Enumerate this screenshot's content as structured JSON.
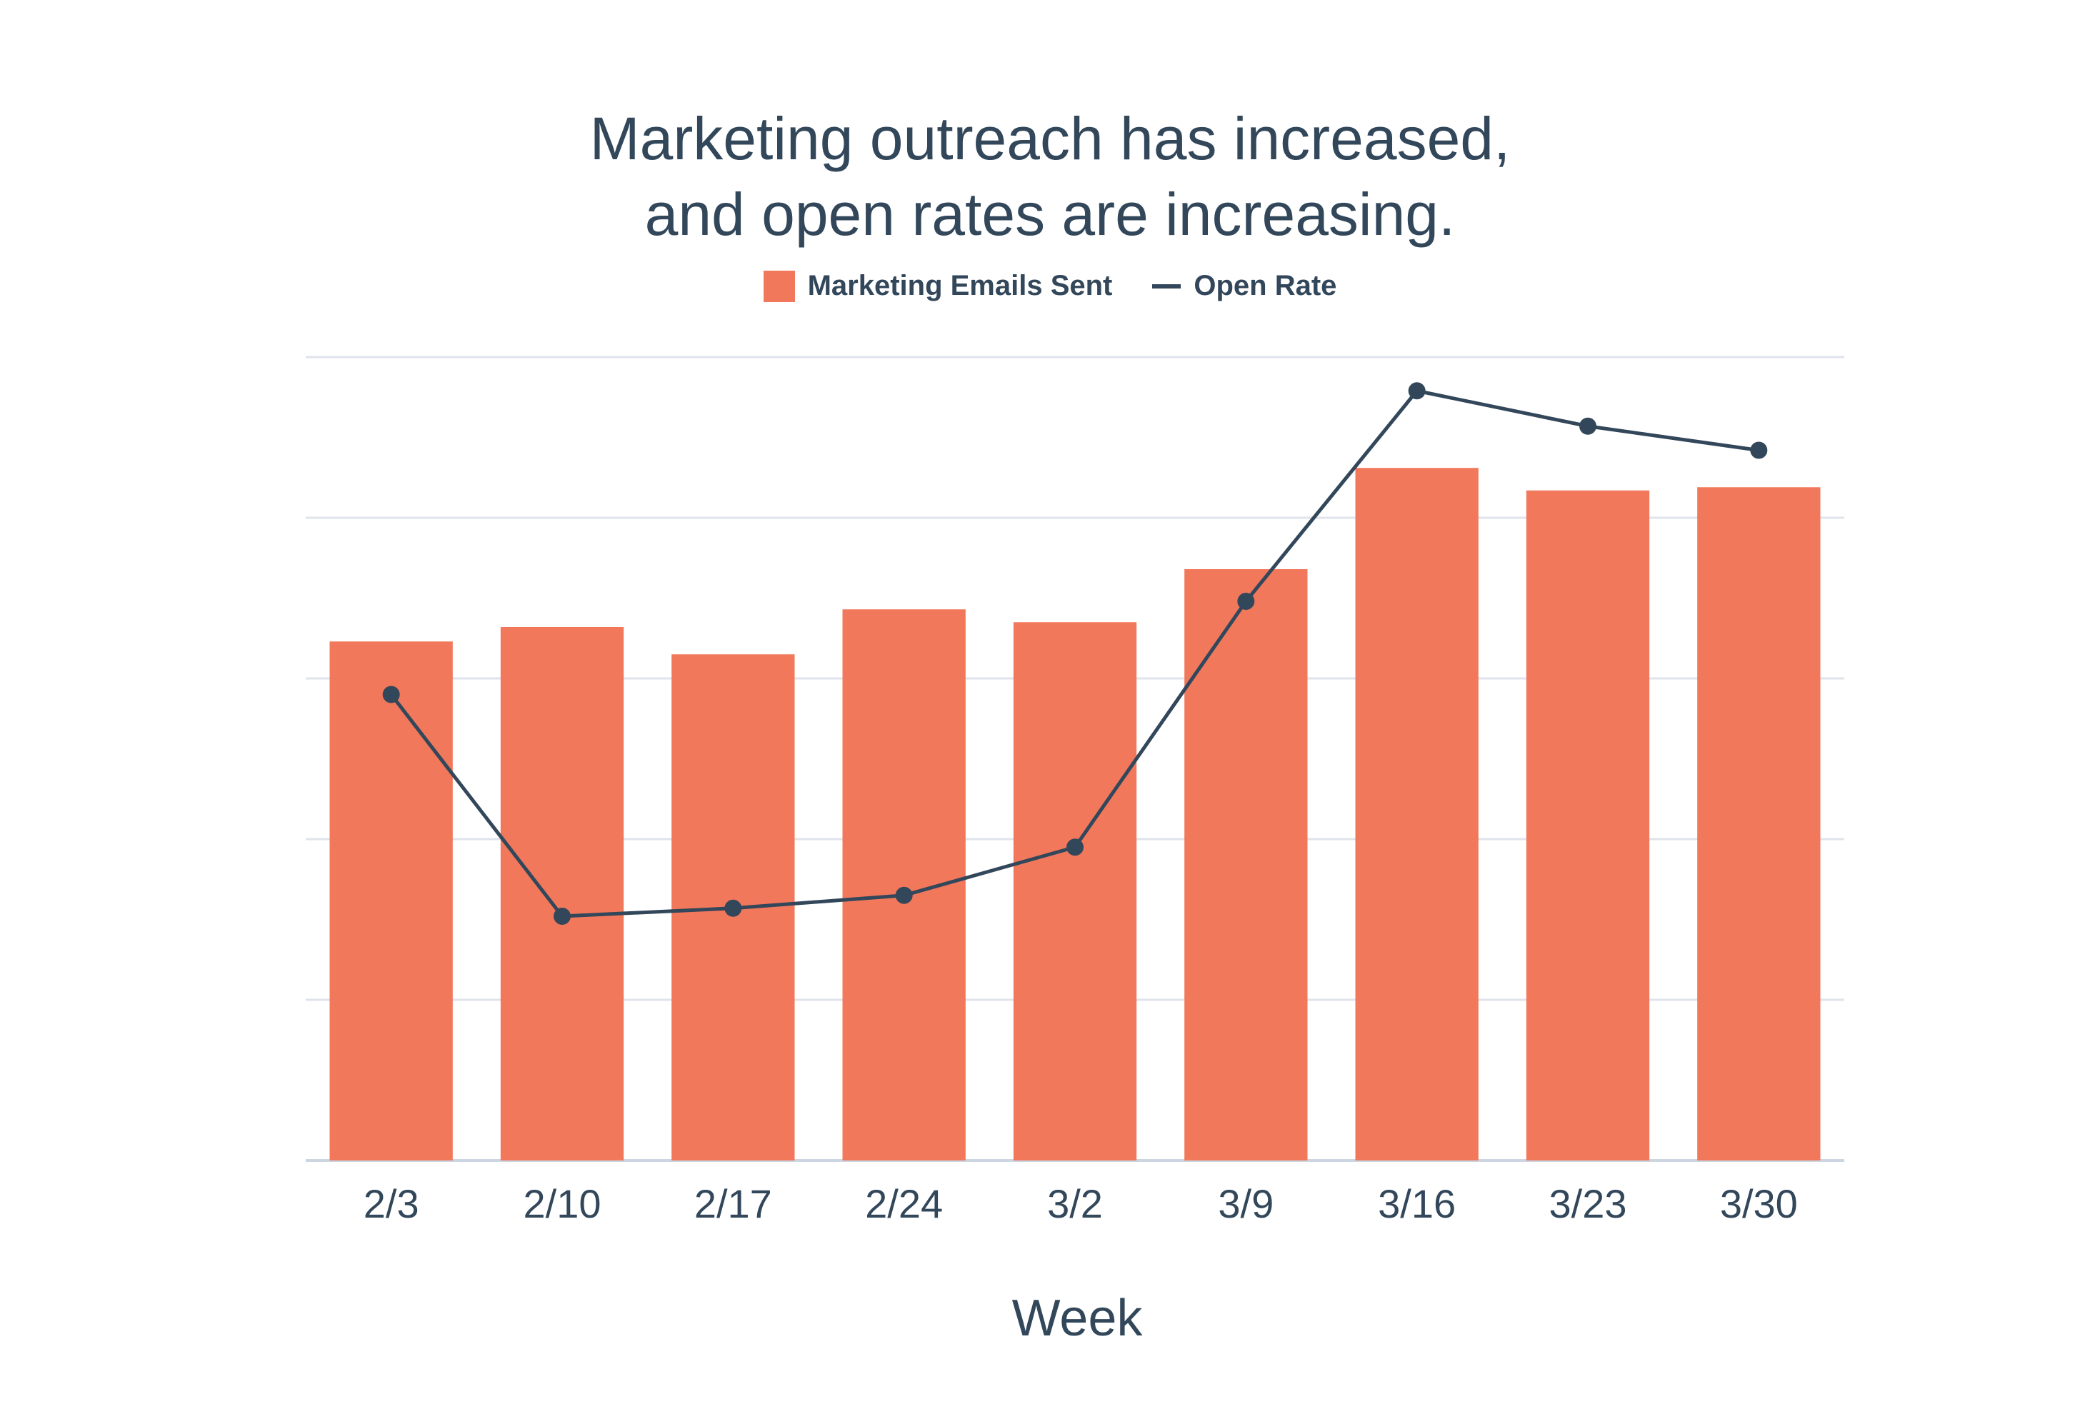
{
  "chart_data": {
    "type": "bar",
    "title": "Marketing outreach has increased, and open rates are increasing.",
    "title_lines": [
      "Marketing outreach has increased,",
      "and open rates are increasing."
    ],
    "xlabel": "Week",
    "ylabel": "",
    "categories": [
      "2/3",
      "2/10",
      "2/17",
      "2/24",
      "3/2",
      "3/9",
      "3/16",
      "3/23",
      "3/30"
    ],
    "ylim": [
      0,
      5
    ],
    "grid": true,
    "legend_position": "top-center",
    "series": [
      {
        "name": "Marketing Emails Sent",
        "type": "bar",
        "color": "#f2785c",
        "values": [
          3.23,
          3.32,
          3.15,
          3.43,
          3.35,
          3.68,
          4.31,
          4.17,
          4.19
        ]
      },
      {
        "name": "Open Rate",
        "type": "line",
        "color": "#33475b",
        "values": [
          2.9,
          1.52,
          1.57,
          1.65,
          1.95,
          3.48,
          4.79,
          4.57,
          4.42
        ]
      }
    ]
  }
}
